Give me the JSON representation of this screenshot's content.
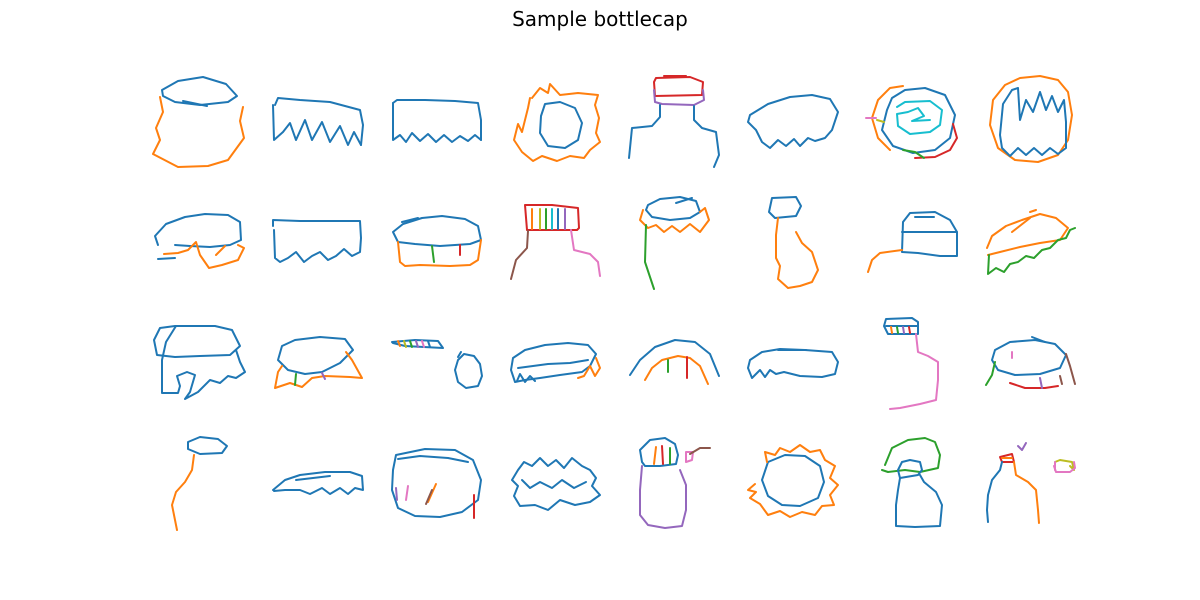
{
  "figure": {
    "title": "Sample bottlecap"
  },
  "palette": {
    "blue": "#1f77b4",
    "orange": "#ff7f0e",
    "green": "#2ca02c",
    "red": "#d62728",
    "purple": "#9467bd",
    "brown": "#8c564b",
    "pink": "#e377c2",
    "olive": "#bcbd22",
    "cyan": "#17becf"
  },
  "grid": {
    "rows": 4,
    "cols": 8,
    "count": 32
  }
}
